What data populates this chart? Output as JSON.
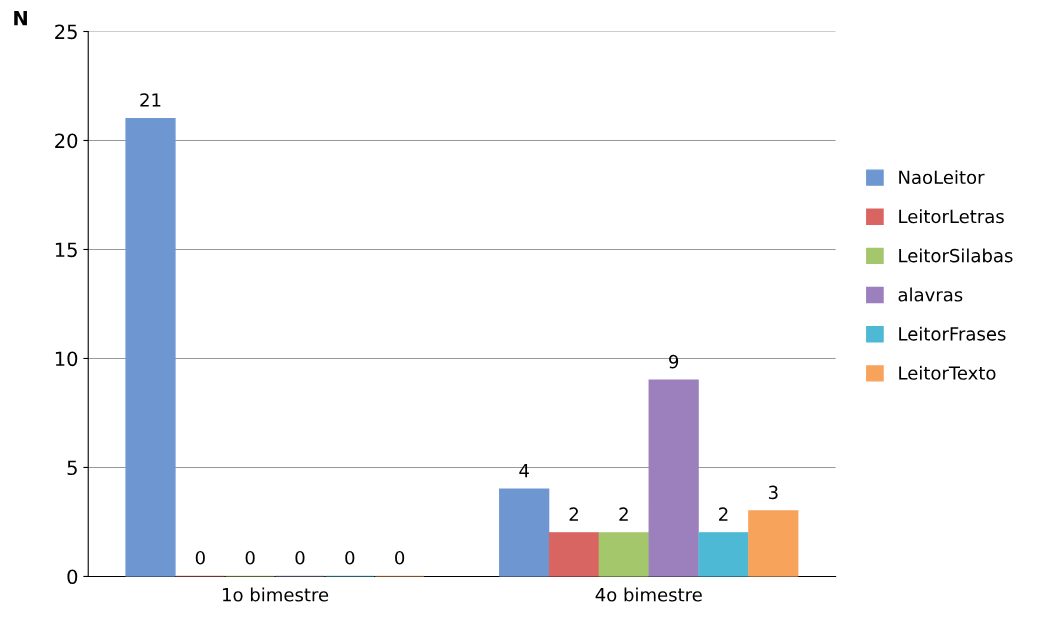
{
  "chart_data": {
    "type": "bar",
    "ylabel": "N",
    "categories": [
      "1o bimestre",
      "4o bimestre"
    ],
    "series": [
      {
        "name": "NaoLeitor",
        "color": "#6e97d2",
        "values": [
          21,
          4
        ]
      },
      {
        "name": "LeitorLetras",
        "color": "#d96562",
        "values": [
          0,
          2
        ]
      },
      {
        "name": "LeitorSilabas",
        "color": "#a5c76c",
        "values": [
          0,
          2
        ]
      },
      {
        "name": "alavras",
        "color": "#9b80bd",
        "values": [
          0,
          9
        ]
      },
      {
        "name": "LeitorFrases",
        "color": "#4db9d5",
        "values": [
          0,
          2
        ]
      },
      {
        "name": "LeitorTexto",
        "color": "#f7a35c",
        "values": [
          0,
          3
        ]
      }
    ],
    "ylim": [
      0,
      25
    ],
    "yticks": [
      0,
      5,
      10,
      15,
      20,
      25
    ],
    "grid": "y",
    "legend": "right",
    "data_labels": true
  }
}
